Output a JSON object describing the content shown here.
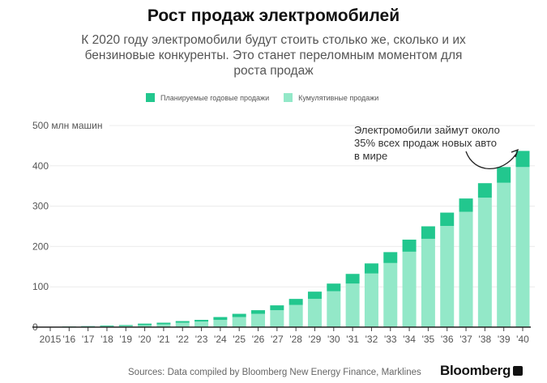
{
  "header": {
    "title": "Рост продаж электромобилей",
    "subtitle": "К 2020 году электромобили будут стоить столько же, сколько и их бензиновые конкуренты. Это станет переломным моментом для роста продаж"
  },
  "legend": {
    "annual": "Планируемые годовые продажи",
    "cumulative": "Кумулятивные продажи"
  },
  "annotation": "Электромобили займут около 35% всех продаж новых авто в мире",
  "footer": {
    "source": "Sources: Data compiled by Bloomberg New Energy Finance, Marklines",
    "logo": "Bloomberg"
  },
  "colors": {
    "annual": "#22c78e",
    "cumulative": "#93e8c8",
    "grid": "#ececec",
    "axis": "#222222"
  },
  "chart_data": {
    "type": "bar",
    "stacked": true,
    "title": "Рост продаж электромобилей",
    "ylabel": "млн машин",
    "ylim": [
      0,
      500
    ],
    "yticks": [
      0,
      100,
      200,
      300,
      400,
      500
    ],
    "ytick_labels": [
      "0",
      "100",
      "200",
      "300",
      "400",
      "500 млн машин"
    ],
    "grid": true,
    "legend_position": "top-center",
    "categories": [
      "2015",
      "'16",
      "'17",
      "'18",
      "'19",
      "'20",
      "'21",
      "'22",
      "'23",
      "'24",
      "'25",
      "'26",
      "'27",
      "'28",
      "'29",
      "'30",
      "'31",
      "'32",
      "'33",
      "'34",
      "'35",
      "'36",
      "'37",
      "'38",
      "'39",
      "'40"
    ],
    "series": [
      {
        "name": "Кумулятивные продажи",
        "values": [
          0.5,
          1,
          1.5,
          2.5,
          3,
          5,
          7,
          11,
          14,
          18,
          25,
          33,
          42,
          55,
          70,
          89,
          108,
          133,
          159,
          187,
          219,
          251,
          286,
          321,
          358,
          397
        ]
      },
      {
        "name": "Планируемые годовые продажи",
        "values": [
          0.5,
          0.5,
          1,
          1.5,
          2,
          3.7,
          4,
          4,
          4,
          7,
          8,
          9,
          12,
          15,
          18,
          19,
          24,
          25,
          27,
          30,
          31,
          33,
          33,
          36,
          39,
          40
        ]
      }
    ]
  }
}
